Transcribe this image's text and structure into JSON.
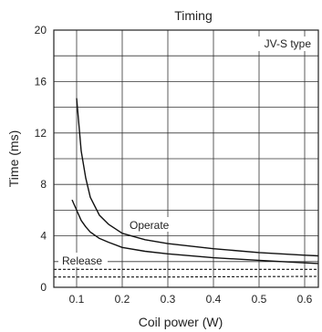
{
  "chart_data": {
    "type": "line",
    "title": "Timing",
    "xlabel": "Coil power (W)",
    "ylabel": "Time (ms)",
    "xlim": [
      0.05,
      0.63
    ],
    "ylim": [
      0,
      20
    ],
    "x_ticks": [
      0.1,
      0.2,
      0.3,
      0.4,
      0.5,
      0.6
    ],
    "x_tick_labels": [
      "0.1",
      "0.2",
      "0.3",
      "0.4",
      "0.5",
      "0.6"
    ],
    "y_ticks": [
      0,
      4,
      8,
      12,
      16,
      20
    ],
    "y_tick_labels": [
      "0",
      "4",
      "8",
      "12",
      "16",
      "20"
    ],
    "grid": true,
    "annotations": {
      "type_label": "JV-S type",
      "operate_label": "Operate",
      "release_label": "Release"
    },
    "series": [
      {
        "name": "Operate",
        "style": "solid",
        "x": [
          0.1,
          0.11,
          0.12,
          0.13,
          0.15,
          0.17,
          0.2,
          0.25,
          0.3,
          0.4,
          0.5,
          0.6,
          0.63
        ],
        "y": [
          14.7,
          10.6,
          8.5,
          7.0,
          5.6,
          4.9,
          4.2,
          3.7,
          3.4,
          3.0,
          2.7,
          2.5,
          2.45
        ]
      },
      {
        "name": "",
        "style": "solid",
        "x": [
          0.09,
          0.1,
          0.11,
          0.12,
          0.13,
          0.15,
          0.17,
          0.2,
          0.25,
          0.3,
          0.4,
          0.5,
          0.6,
          0.63
        ],
        "y": [
          6.8,
          6.0,
          5.2,
          4.7,
          4.3,
          3.8,
          3.5,
          3.1,
          2.8,
          2.6,
          2.3,
          2.1,
          1.9,
          1.85
        ]
      },
      {
        "name": "Release",
        "style": "dashed",
        "x": [
          0.05,
          0.3,
          0.63
        ],
        "y": [
          1.4,
          1.4,
          1.4
        ]
      },
      {
        "name": "",
        "style": "dashed",
        "x": [
          0.05,
          0.3,
          0.63
        ],
        "y": [
          0.8,
          0.8,
          0.85
        ]
      }
    ]
  }
}
